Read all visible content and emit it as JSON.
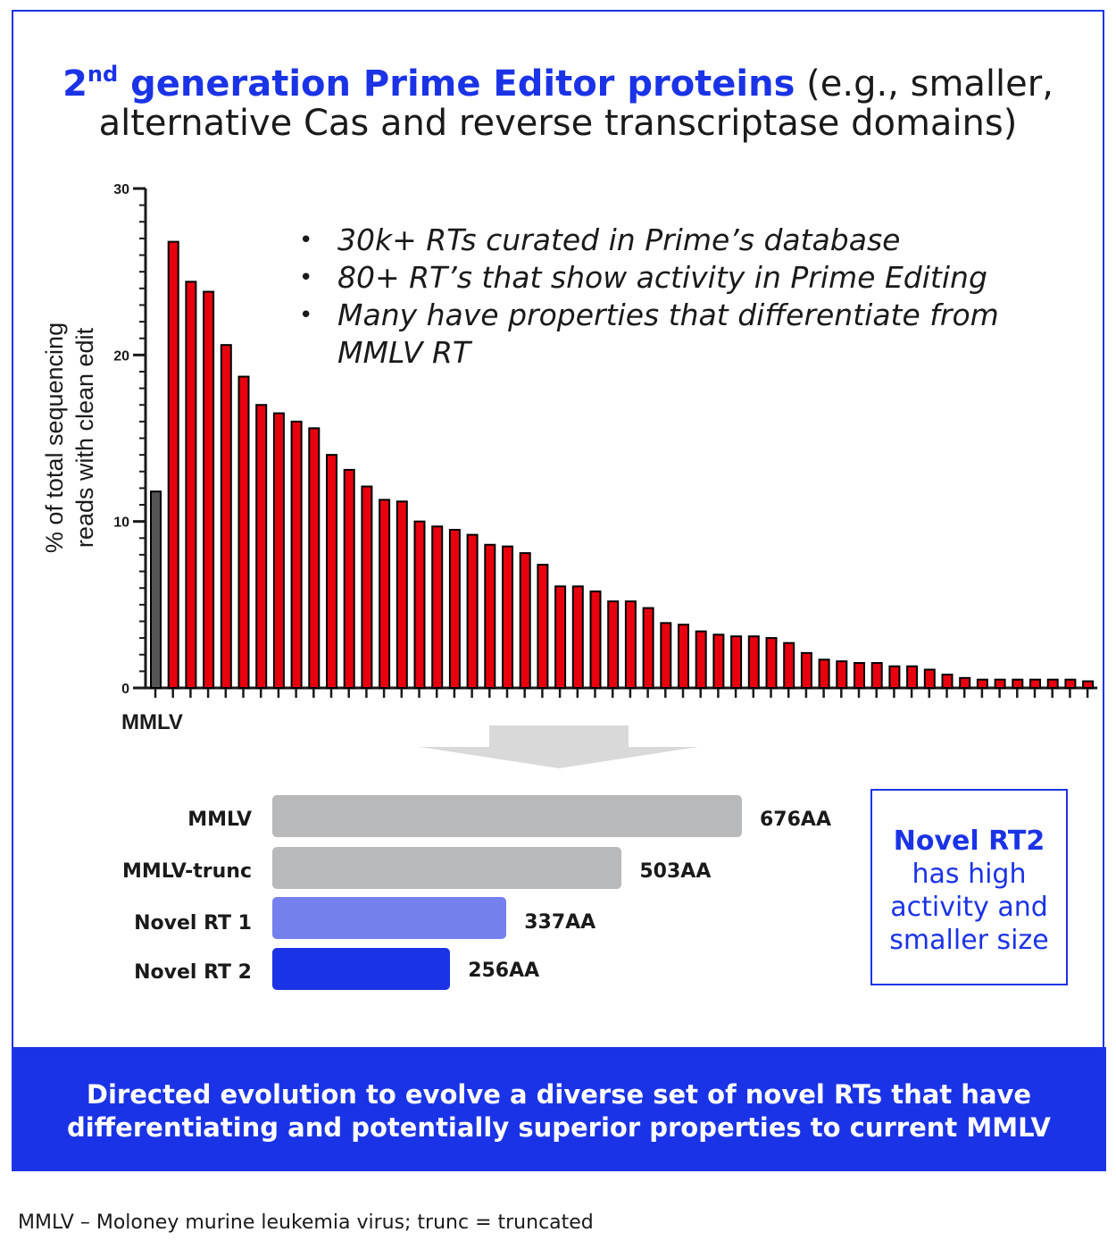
{
  "title": {
    "sup": "nd",
    "number": "2",
    "highlight": "generation Prime Editor proteins",
    "rest_line1": " (e.g., smaller,",
    "line2": "alternative Cas and reverse transcriptase domains)"
  },
  "bullets": [
    "30k+ RTs curated in Prime’s database",
    "80+ RT’s that show activity in Prime Editing",
    "Many have properties that differentiate from MMLV RT"
  ],
  "bullet_symbol": "•",
  "colors": {
    "accent": "#1b33e6",
    "bar_red": "#e8000e",
    "bar_gray": "#555555",
    "size_gray": "#b8b9ba",
    "novel1": "#7580ef",
    "novel2": "#1b33e6"
  },
  "chart_data": {
    "type": "bar",
    "ylabel_line1": "% of total sequencing",
    "ylabel_line2": "reads with clean edit",
    "ylim": [
      0,
      30
    ],
    "yticks": [
      "0",
      "10",
      "20",
      "30"
    ],
    "ytick_values": [
      0,
      10,
      20,
      30
    ],
    "highlight_label": "MMLV",
    "values": [
      11.8,
      26.8,
      24.4,
      23.8,
      20.6,
      18.7,
      17.0,
      16.5,
      16.0,
      15.6,
      14.0,
      13.1,
      12.1,
      11.3,
      11.2,
      10.0,
      9.7,
      9.5,
      9.2,
      8.6,
      8.5,
      8.1,
      7.4,
      6.1,
      6.1,
      5.8,
      5.2,
      5.2,
      4.8,
      3.9,
      3.8,
      3.4,
      3.2,
      3.1,
      3.1,
      3.0,
      2.7,
      2.1,
      1.7,
      1.6,
      1.5,
      1.5,
      1.3,
      1.3,
      1.1,
      0.8,
      0.6,
      0.5,
      0.5,
      0.5,
      0.5,
      0.5,
      0.5,
      0.4
    ]
  },
  "protein_sizes": [
    {
      "label": "MMLV",
      "value": 676,
      "value_label": "676AA"
    },
    {
      "label": "MMLV-trunc",
      "value": 503,
      "value_label": "503AA"
    },
    {
      "label": "Novel RT 1",
      "value": 337,
      "value_label": "337AA"
    },
    {
      "label": "Novel RT 2",
      "value": 256,
      "value_label": "256AA"
    }
  ],
  "callout": {
    "strong": "Novel RT2",
    "rest": "has high activity and smaller size"
  },
  "banner": "Directed evolution to evolve a diverse set of novel RTs that have differentiating and potentially superior properties to current MMLV",
  "footnote": "MMLV – Moloney murine leukemia virus; trunc = truncated"
}
